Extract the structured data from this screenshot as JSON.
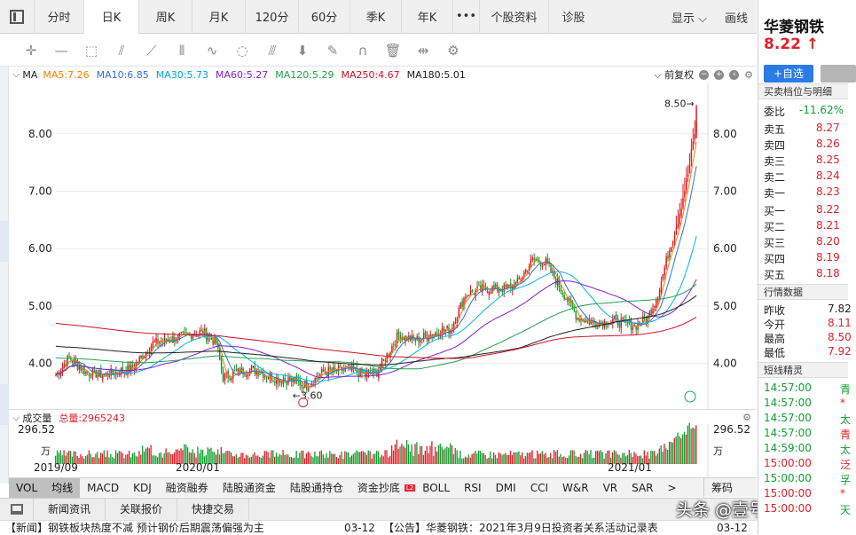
{
  "periods": [
    "分时",
    "日K",
    "周K",
    "月K",
    "120分",
    "60分",
    "季K",
    "年K",
    "•••",
    "个股资料",
    "诊股"
  ],
  "active_period": "日K",
  "display_label": "显示",
  "draw_label": "画线",
  "ma_bar": {
    "title": "MA",
    "ma5": "MA5:7.26",
    "ma10": "MA10:6.85",
    "ma30": "MA30:5.73",
    "ma60": "MA60:5.27",
    "ma120": "MA120:5.29",
    "ma250": "MA250:4.67",
    "ma180": "MA180:5.01",
    "adjust": "前复权"
  },
  "chart_data": {
    "type": "candlestick",
    "y_ticks": [
      "8.00",
      "7.00",
      "6.00",
      "5.00",
      "4.00"
    ],
    "x_ticks": [
      "2019/09",
      "2020/01",
      "2021/01"
    ],
    "high_label": "8.50→",
    "low_label": "←3.60",
    "volume_max_label": "296.52",
    "volume_unit": "万",
    "colors": {
      "up": "#e0202a",
      "down": "#10a030",
      "ma5": "#f08000",
      "ma10": "#3070e0",
      "ma30": "#00b8d8",
      "ma60": "#8020d0",
      "ma120": "#20a050",
      "ma250": "#d01020",
      "ma180": "#202020"
    }
  },
  "volume": {
    "title": "成交量",
    "total": "总量:2965243"
  },
  "indicators": [
    "VOL",
    "均线",
    "MACD",
    "KDJ",
    "融资融券",
    "陆股通资金",
    "陆股通持仓",
    "资金抄底",
    "BOLL",
    "RSI",
    "DMI",
    "CCI",
    "W&R",
    "VR",
    "SAR",
    ">"
  ],
  "chips_label": "筹码",
  "bottom_tabs": [
    "新闻资讯",
    "关联报价",
    "快捷交易"
  ],
  "news": [
    {
      "text": "【新闻】钢铁板块热度不减 预计钢价后期震荡偏强为主",
      "date": "03-12"
    },
    {
      "text": "【公告】华菱钢铁：2021年3月9日投资者关系活动记录表",
      "date": "03-12"
    }
  ],
  "watermark": "头条 @壹号股权",
  "stock": {
    "name": "华菱钢铁",
    "price": "8.22",
    "arrow": "↑",
    "add_label": "+自选",
    "orderbook_title": "买卖档位与明细",
    "ratio_label": "委比",
    "ratio_value": "-11.62%",
    "asks": [
      {
        "label": "卖五",
        "price": "8.27"
      },
      {
        "label": "卖四",
        "price": "8.26"
      },
      {
        "label": "卖三",
        "price": "8.25"
      },
      {
        "label": "卖二",
        "price": "8.24"
      },
      {
        "label": "卖一",
        "price": "8.23"
      }
    ],
    "bids": [
      {
        "label": "买一",
        "price": "8.22"
      },
      {
        "label": "买二",
        "price": "8.21"
      },
      {
        "label": "买三",
        "price": "8.20"
      },
      {
        "label": "买四",
        "price": "8.19"
      },
      {
        "label": "买五",
        "price": "8.18"
      }
    ],
    "market_title": "行情数据",
    "market": [
      {
        "label": "昨收",
        "value": "7.82"
      },
      {
        "label": "今开",
        "value": "8.11"
      },
      {
        "label": "最高",
        "value": "8.50"
      },
      {
        "label": "最低",
        "value": "7.92"
      }
    ],
    "elf_title": "短线精灵",
    "elf": [
      {
        "time": "14:57:00",
        "v": "青"
      },
      {
        "time": "14:57:00",
        "v": "*"
      },
      {
        "time": "14:57:00",
        "v": "太"
      },
      {
        "time": "14:57:00",
        "v": "青"
      },
      {
        "time": "14:59:00",
        "v": "太"
      },
      {
        "time": "15:00:00",
        "v": "泛"
      },
      {
        "time": "15:00:00",
        "v": "孚"
      },
      {
        "time": "15:00:00",
        "v": "*"
      },
      {
        "time": "15:00:00",
        "v": "天"
      }
    ]
  }
}
